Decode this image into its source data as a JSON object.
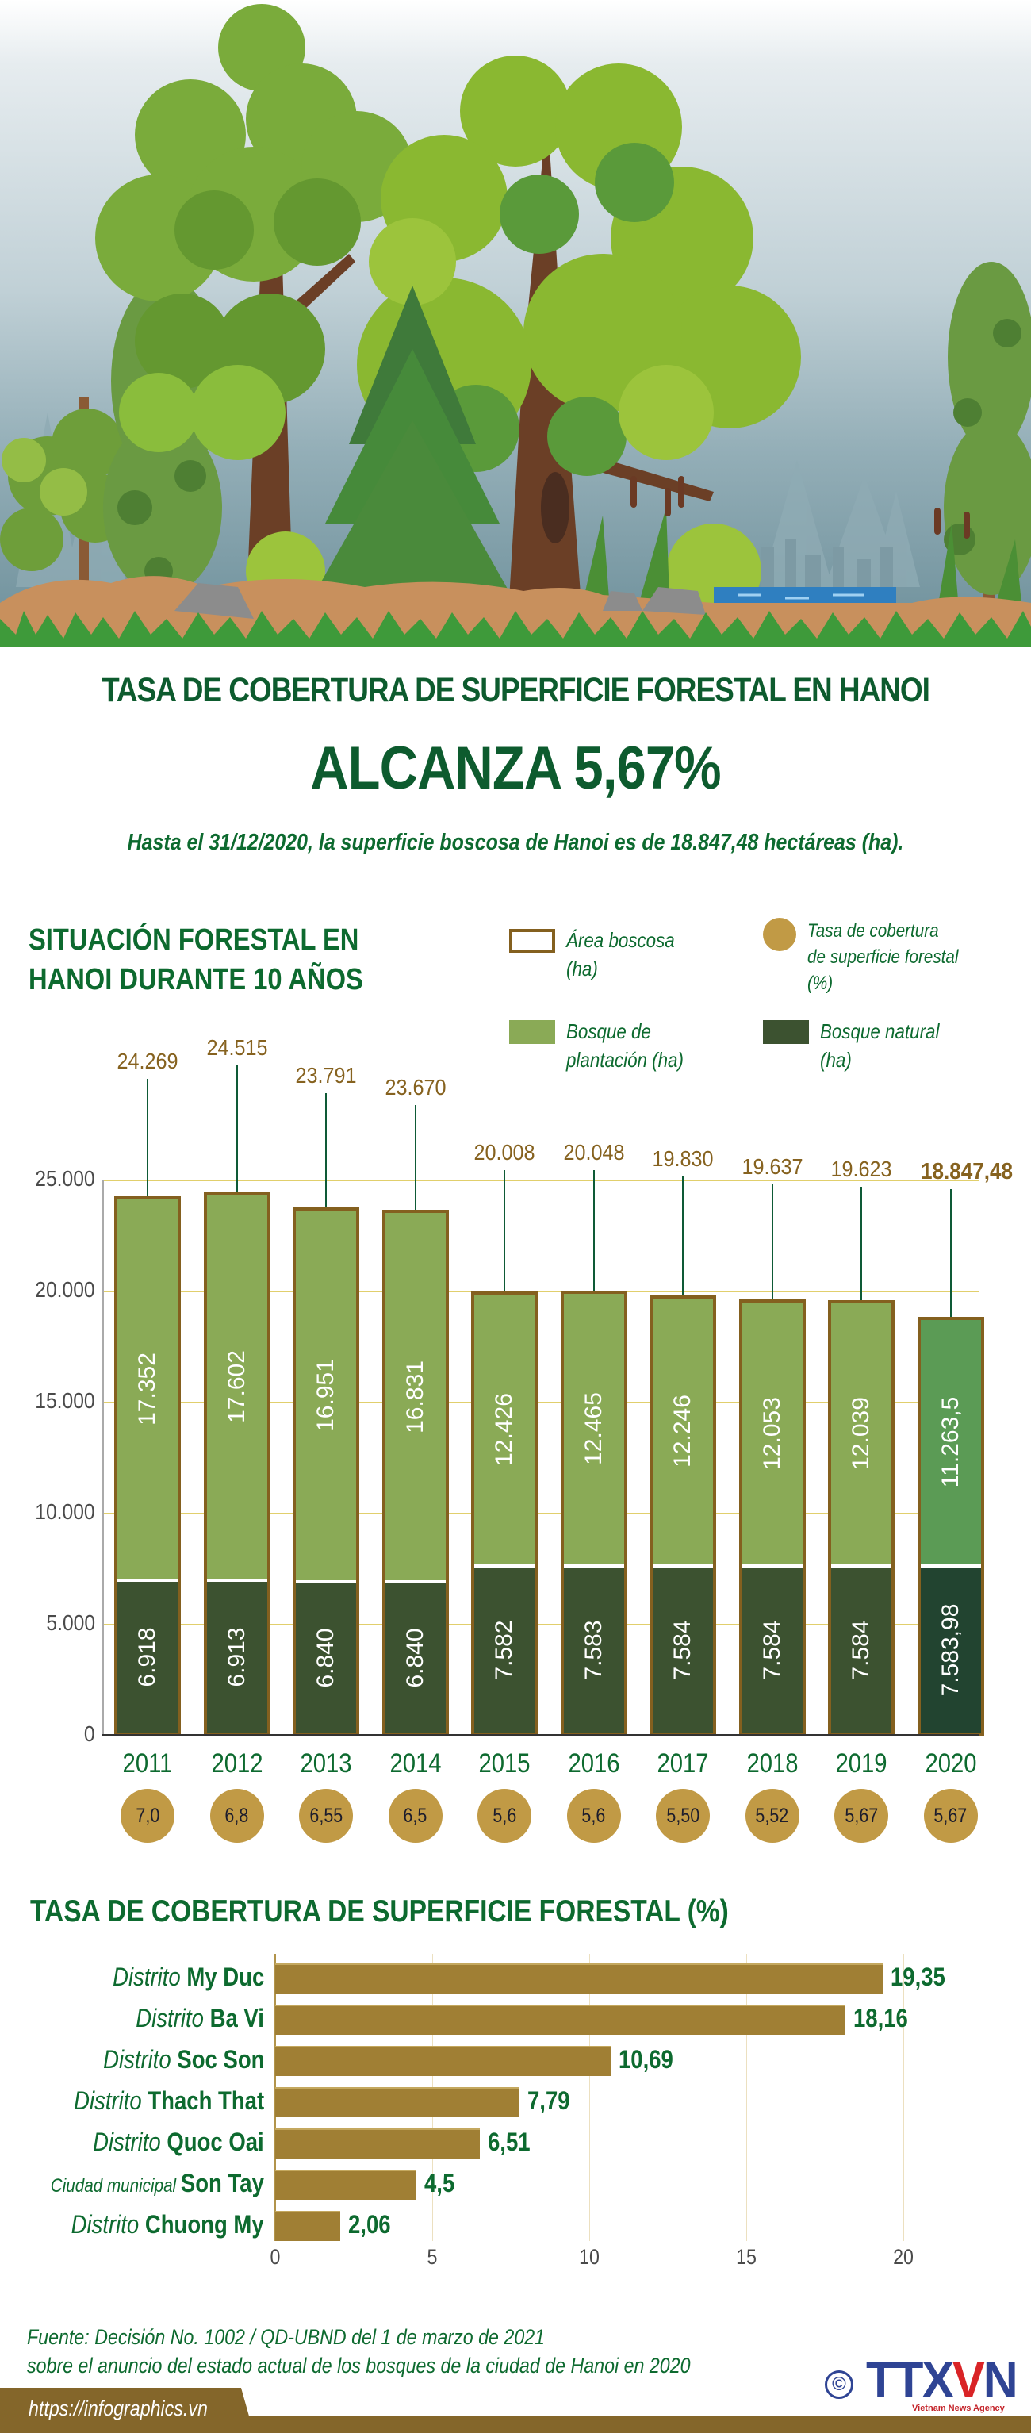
{
  "hero": {
    "illustration": "forest-scene",
    "colors": {
      "sky_top": "#ffffff",
      "sky_bottom": "#6d8f9a",
      "trunk": "#6b3f26",
      "soil": "#c8905d",
      "grass": "#3e9a3a",
      "water": "#2f7fc0",
      "rock": "#8c8c8c"
    }
  },
  "header": {
    "title_line1": "TASA DE COBERTURA DE SUPERFICIE FORESTAL EN HANOI",
    "title_line2": "ALCANZA 5,67%",
    "subtitle": "Hasta el 31/12/2020, la superficie boscosa de Hanoi es de 18.847,48 hectáreas (ha)."
  },
  "section1": {
    "title_line1": "SITUACIÓN FORESTAL EN",
    "title_line2": "HANOI DURANTE 10 AÑOS",
    "legend": [
      {
        "key": "area",
        "label": "Área boscosa\n(ha)",
        "swatch": "outline",
        "color": "#84601f"
      },
      {
        "key": "rate",
        "label": "Tasa de cobertura\nde superficie forestal\n(%)",
        "swatch": "dot",
        "color": "#c19a45"
      },
      {
        "key": "plantation",
        "label": "Bosque de\nplantación (ha)",
        "swatch": "fill",
        "color": "#8aaa56"
      },
      {
        "key": "natural",
        "label": "Bosque natural\n(ha)",
        "swatch": "fill",
        "color": "#3c5230"
      }
    ]
  },
  "section2": {
    "title": "TASA DE COBERTURA DE SUPERFICIE FORESTAL (%)"
  },
  "footer": {
    "source_line1": "Fuente: Decisión No. 1002 / QD-UBND del 1 de marzo de 2021",
    "source_line2": "sobre el anuncio del estado actual de los bosques de la ciudad de Hanoi en 2020",
    "copyright_symbol": "©",
    "logo_main": "TTX",
    "logo_v": "V",
    "logo_n": "N",
    "logo_sub": "Vietnam News Agency",
    "url": "https://infographics.vn"
  },
  "chart_data": [
    {
      "type": "bar",
      "subtype": "stacked",
      "title": "SITUACIÓN FORESTAL EN HANOI DURANTE 10 AÑOS",
      "xlabel": "",
      "ylabel": "ha",
      "ylim": [
        0,
        25000
      ],
      "yticks": [
        "0",
        "5.000",
        "10.000",
        "15.000",
        "20.000",
        "25.000"
      ],
      "ytick_values": [
        0,
        5000,
        10000,
        15000,
        20000,
        25000
      ],
      "grid": true,
      "legend_position": "top-right",
      "categories": [
        "2011",
        "2012",
        "2013",
        "2014",
        "2015",
        "2016",
        "2017",
        "2018",
        "2019",
        "2020"
      ],
      "series": [
        {
          "name": "Bosque natural (ha)",
          "color": "#3c5230",
          "values": [
            6918,
            6913,
            6840,
            6840,
            7582,
            7583,
            7584,
            7584,
            7584,
            7583.98
          ],
          "labels": [
            "6.918",
            "6.913",
            "6.840",
            "6.840",
            "7.582",
            "7.583",
            "7.584",
            "7.584",
            "7.584",
            "7.583,98"
          ]
        },
        {
          "name": "Bosque de plantación (ha)",
          "color": "#8aaa56",
          "values": [
            17352,
            17602,
            16951,
            16831,
            12426,
            12465,
            12246,
            12053,
            12039,
            11263.5
          ],
          "labels": [
            "17.352",
            "17.602",
            "16.951",
            "16.831",
            "12.426",
            "12.465",
            "12.246",
            "12.053",
            "12.039",
            "11.263,5"
          ]
        },
        {
          "name": "Área boscosa (ha)",
          "color": "#84601f",
          "values": [
            24269,
            24515,
            23791,
            23670,
            20008,
            20048,
            19830,
            19637,
            19623,
            18847.48
          ],
          "labels": [
            "24.269",
            "24.515",
            "23.791",
            "23.670",
            "20.008",
            "20.048",
            "19.830",
            "19.637",
            "19.623",
            "18.847,48"
          ]
        },
        {
          "name": "Tasa de cobertura de superficie forestal (%)",
          "color": "#c19a45",
          "values": [
            7.0,
            6.8,
            6.55,
            6.5,
            5.6,
            5.6,
            5.5,
            5.52,
            5.67,
            5.67
          ],
          "labels": [
            "7,0",
            "6,8",
            "6,55",
            "6,5",
            "5,6",
            "5,6",
            "5,50",
            "5,52",
            "5,67",
            "5,67"
          ]
        }
      ]
    },
    {
      "type": "bar",
      "orientation": "horizontal",
      "title": "TASA DE COBERTURA DE SUPERFICIE FORESTAL (%)",
      "xlabel": "",
      "ylabel": "",
      "xlim": [
        0,
        20
      ],
      "xticks": [
        "0",
        "5",
        "10",
        "15",
        "20"
      ],
      "grid": true,
      "color": "#a07f34",
      "categories": [
        {
          "prefix": "Distrito",
          "name": "My Duc"
        },
        {
          "prefix": "Distrito",
          "name": "Ba Vi"
        },
        {
          "prefix": "Distrito",
          "name": "Soc Son"
        },
        {
          "prefix": "Distrito",
          "name": "Thach That"
        },
        {
          "prefix": "Distrito",
          "name": "Quoc Oai"
        },
        {
          "prefix": "Ciudad municipal",
          "name": "Son Tay"
        },
        {
          "prefix": "Distrito",
          "name": "Chuong My"
        }
      ],
      "values": [
        19.35,
        18.16,
        10.69,
        7.79,
        6.51,
        4.5,
        2.06
      ],
      "labels": [
        "19,35",
        "18,16",
        "10,69",
        "7,79",
        "6,51",
        "4,5",
        "2,06"
      ]
    }
  ]
}
